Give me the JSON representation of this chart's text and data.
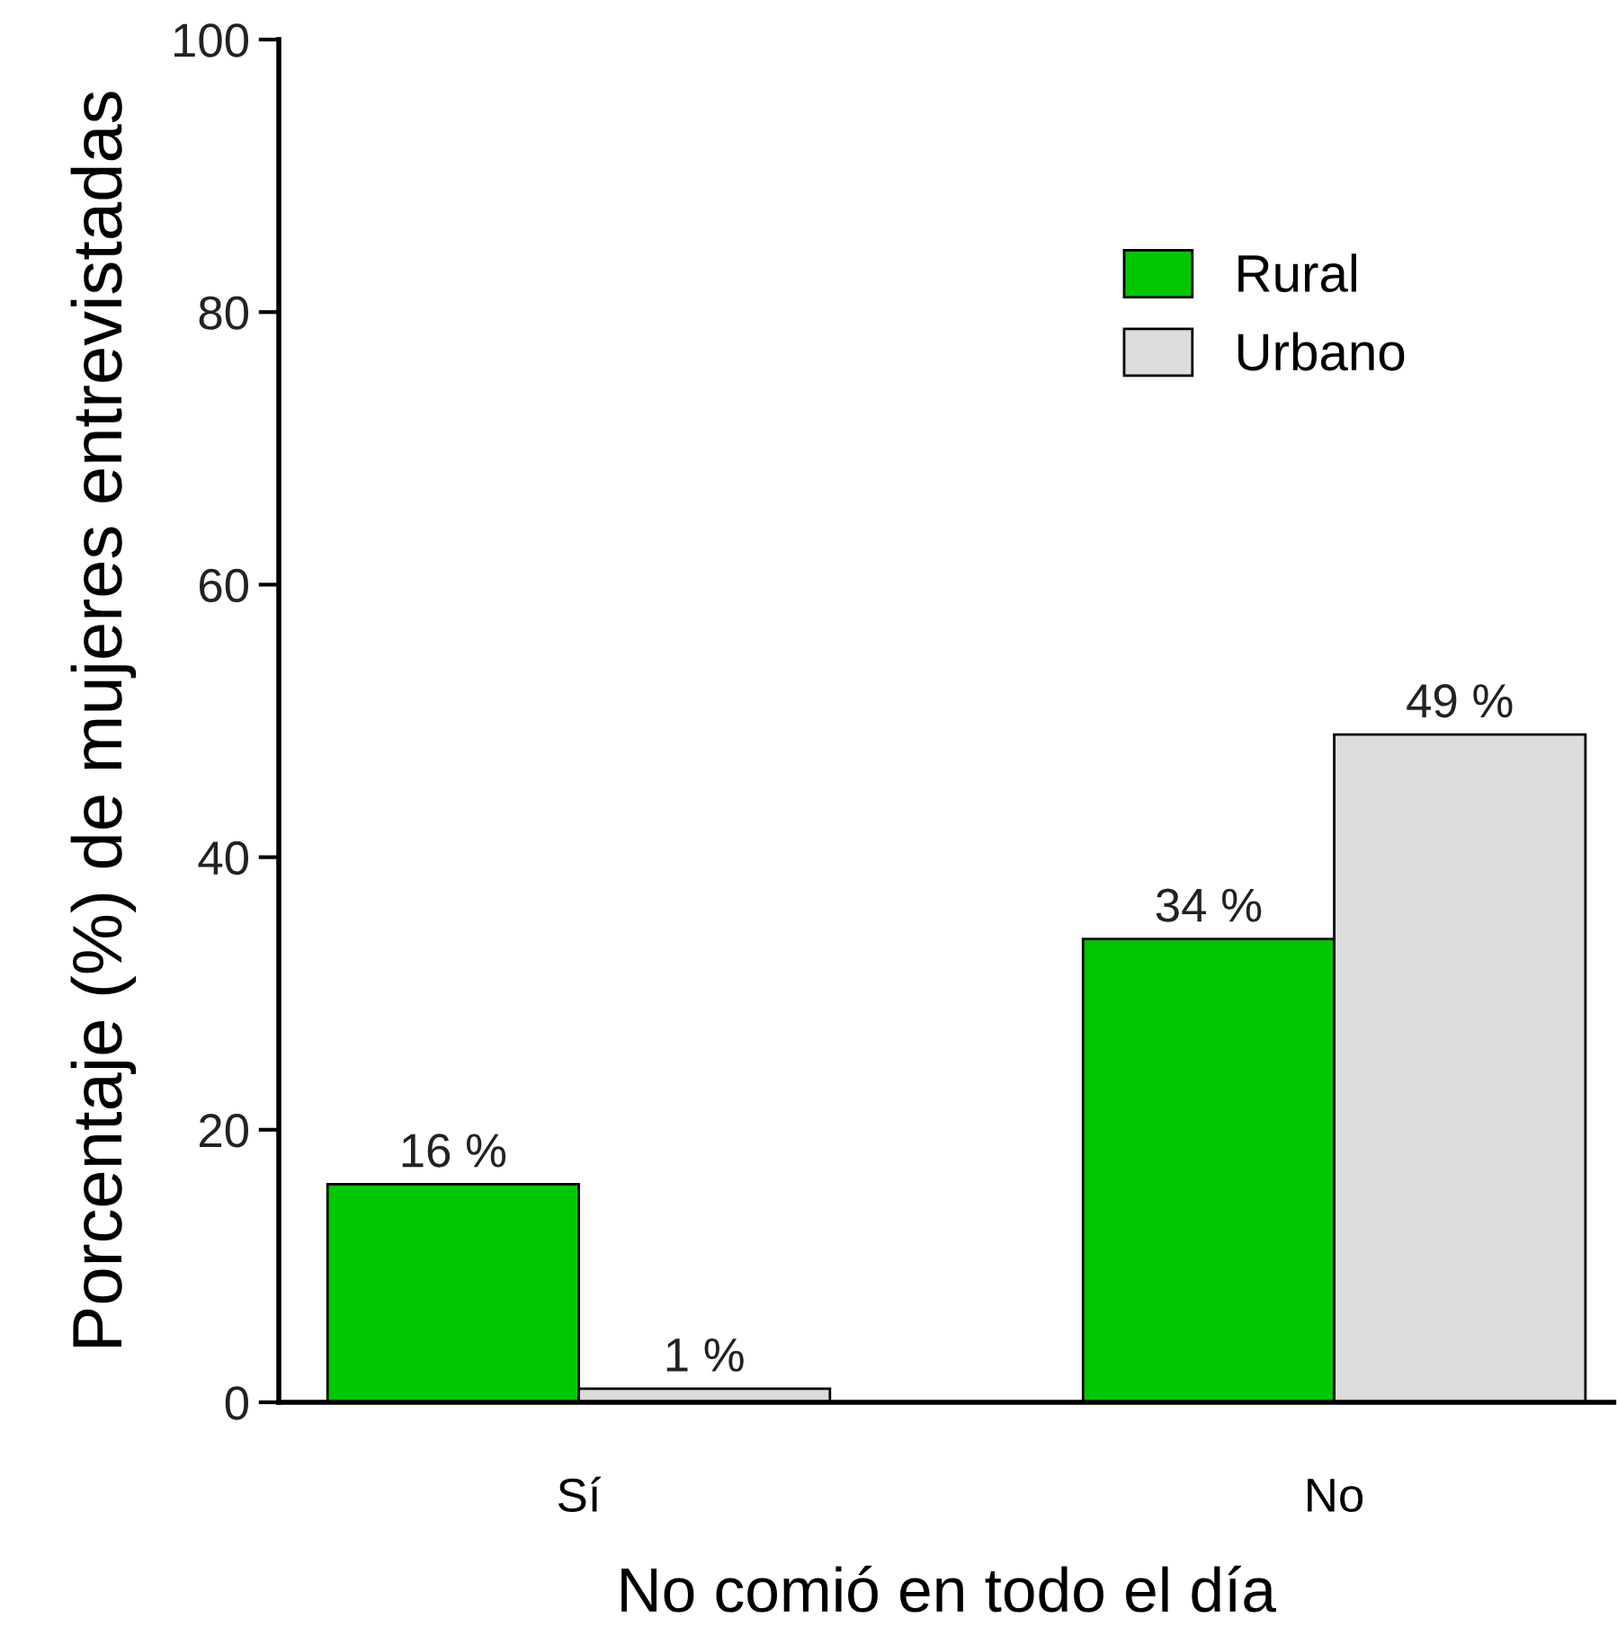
{
  "chart_data": {
    "type": "bar",
    "xlabel": "No comió en todo el día",
    "ylabel": "Porcentaje (%) de mujeres entrevistadas",
    "categories": [
      "Sí",
      "No"
    ],
    "series": [
      {
        "name": "Rural",
        "color": "#00c800",
        "values": [
          16,
          34
        ],
        "value_labels": [
          "16 %",
          "34 %"
        ]
      },
      {
        "name": "Urbano",
        "color": "#dcdcdc",
        "values": [
          1,
          49
        ],
        "value_labels": [
          "1 %",
          "49 %"
        ]
      }
    ],
    "ylim": [
      0,
      100
    ],
    "yticks": [
      0,
      20,
      40,
      60,
      80,
      100
    ],
    "grid": false,
    "legend": "top right"
  }
}
